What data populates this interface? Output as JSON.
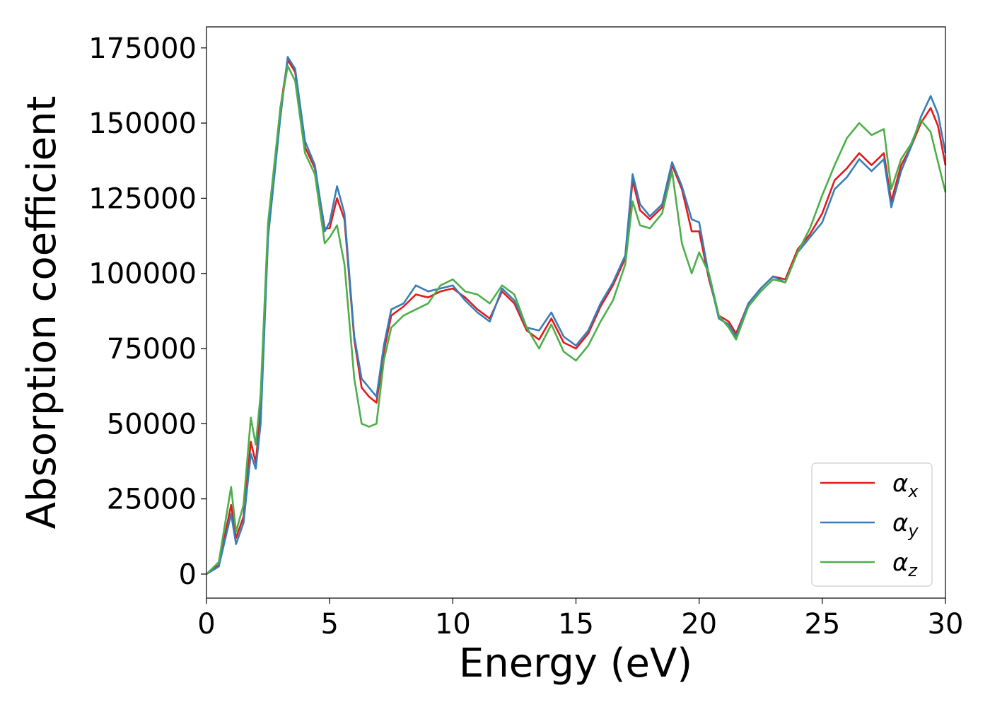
{
  "chart_data": {
    "type": "line",
    "xlabel": "Energy (eV)",
    "ylabel": "Absorption coefficient",
    "xlim": [
      0,
      30
    ],
    "ylim": [
      -8000,
      182000
    ],
    "xticks": [
      0,
      5,
      10,
      15,
      20,
      25,
      30
    ],
    "xtick_labels": [
      "0",
      "5",
      "10",
      "15",
      "20",
      "25",
      "30"
    ],
    "yticks": [
      0,
      25000,
      50000,
      75000,
      100000,
      125000,
      150000,
      175000
    ],
    "ytick_labels": [
      "0",
      "25000",
      "50000",
      "75000",
      "100000",
      "125000",
      "150000",
      "175000"
    ],
    "legend_position": "bottom-right",
    "x": [
      0,
      0.5,
      1.0,
      1.2,
      1.5,
      1.8,
      2.0,
      2.2,
      2.5,
      3.0,
      3.3,
      3.6,
      4.0,
      4.4,
      4.8,
      5.0,
      5.3,
      5.6,
      6.0,
      6.3,
      6.6,
      6.9,
      7.2,
      7.5,
      8.0,
      8.5,
      9.0,
      9.5,
      10.0,
      10.5,
      11.0,
      11.5,
      12.0,
      12.5,
      13.0,
      13.5,
      14.0,
      14.5,
      15.0,
      15.5,
      16.0,
      16.5,
      17.0,
      17.3,
      17.6,
      18.0,
      18.5,
      18.9,
      19.3,
      19.7,
      20.0,
      20.4,
      20.8,
      21.2,
      21.5,
      22.0,
      22.5,
      23.0,
      23.5,
      24.0,
      24.5,
      25.0,
      25.5,
      26.0,
      26.5,
      27.0,
      27.5,
      27.8,
      28.2,
      28.6,
      29.0,
      29.4,
      29.7,
      30.0
    ],
    "series": [
      {
        "name": "α_x",
        "color": "#e41a1c",
        "values": [
          0,
          3000,
          23000,
          12000,
          19000,
          44000,
          37000,
          55000,
          115000,
          155000,
          171000,
          167000,
          142000,
          135000,
          115000,
          115000,
          125000,
          118000,
          78000,
          62000,
          59000,
          57000,
          74000,
          86000,
          89000,
          93000,
          92000,
          94000,
          95000,
          92000,
          88000,
          85000,
          94000,
          90000,
          81000,
          78000,
          85000,
          77000,
          75000,
          80000,
          89000,
          96000,
          105000,
          131000,
          121000,
          118000,
          122000,
          136000,
          128000,
          114000,
          114000,
          98000,
          86000,
          84000,
          80000,
          90000,
          95000,
          99000,
          98000,
          108000,
          113000,
          120000,
          131000,
          135000,
          140000,
          136000,
          140000,
          124000,
          136000,
          142000,
          150000,
          155000,
          149000,
          136000
        ]
      },
      {
        "name": "α_y",
        "color": "#377eb8",
        "values": [
          0,
          2500,
          20000,
          10000,
          17000,
          40000,
          35000,
          50000,
          112000,
          152000,
          172000,
          168000,
          144000,
          136000,
          114000,
          117000,
          129000,
          120000,
          79000,
          65000,
          62000,
          59000,
          76000,
          88000,
          90000,
          96000,
          94000,
          95000,
          96000,
          91000,
          87000,
          84000,
          95000,
          91000,
          82000,
          81000,
          87000,
          79000,
          76000,
          81000,
          90000,
          97000,
          106000,
          133000,
          123000,
          119000,
          123000,
          137000,
          129000,
          118000,
          117000,
          99000,
          85000,
          83000,
          79000,
          90000,
          95000,
          99000,
          97000,
          107000,
          112000,
          117000,
          128000,
          132000,
          138000,
          134000,
          138000,
          122000,
          134000,
          142000,
          152000,
          159000,
          153000,
          140000
        ]
      },
      {
        "name": "α_z",
        "color": "#4daf4a",
        "values": [
          0,
          4000,
          29000,
          14000,
          23000,
          52000,
          43000,
          60000,
          117000,
          155000,
          169000,
          164000,
          140000,
          133000,
          110000,
          112000,
          116000,
          103000,
          65000,
          50000,
          49000,
          50000,
          71000,
          82000,
          86000,
          88000,
          90000,
          96000,
          98000,
          94000,
          93000,
          90000,
          96000,
          93000,
          82000,
          75000,
          83000,
          74000,
          71000,
          76000,
          84000,
          91000,
          103000,
          124000,
          116000,
          115000,
          120000,
          134000,
          110000,
          100000,
          107000,
          100000,
          86000,
          82000,
          78000,
          89000,
          94000,
          98000,
          97000,
          107000,
          115000,
          126000,
          136000,
          145000,
          150000,
          146000,
          148000,
          128000,
          138000,
          143000,
          151000,
          147000,
          137000,
          127000
        ]
      }
    ]
  },
  "legend": {
    "entries": [
      {
        "symbol": "α",
        "subscript": "x",
        "color": "#e41a1c"
      },
      {
        "symbol": "α",
        "subscript": "y",
        "color": "#377eb8"
      },
      {
        "symbol": "α",
        "subscript": "z",
        "color": "#4daf4a"
      }
    ]
  }
}
